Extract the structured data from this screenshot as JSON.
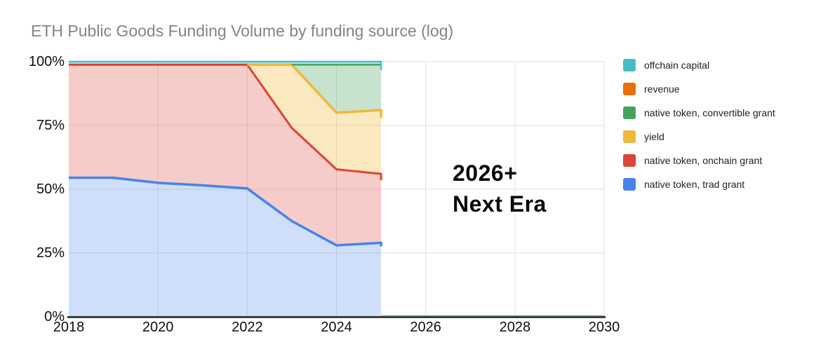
{
  "chart_data": {
    "type": "area",
    "stacking": "percent",
    "title": "ETH Public Goods Funding Volume by funding source (log)",
    "x": [
      2018,
      2019,
      2020,
      2021,
      2022,
      2023,
      2024,
      2025
    ],
    "x_axis": {
      "ticks": [
        2018,
        2020,
        2022,
        2024,
        2026,
        2028,
        2030
      ],
      "range": [
        2018,
        2030
      ]
    },
    "y_axis": {
      "ticks": [
        {
          "label": "0%",
          "pct": 0
        },
        {
          "label": "25%",
          "pct": 25
        },
        {
          "label": "50%",
          "pct": 50
        },
        {
          "label": "75%",
          "pct": 75
        },
        {
          "label": "100%",
          "pct": 100
        }
      ],
      "range_pct": [
        0,
        100
      ]
    },
    "series": [
      {
        "key": "trad",
        "name": "native token, trad grant",
        "color": "#4683EA",
        "fill": "rgba(70,131,234,0.26)",
        "values": [
          54.5,
          54.5,
          52.5,
          51.5,
          50.3,
          37.5,
          28.0,
          29.0
        ]
      },
      {
        "key": "onchain",
        "name": "native token, onchain grant",
        "color": "#DB4437",
        "fill": "rgba(219,68,55,0.27)",
        "values": [
          44.3,
          44.3,
          46.3,
          47.3,
          48.5,
          36.5,
          29.8,
          27.0
        ]
      },
      {
        "key": "yield",
        "name": "yield",
        "color": "#F0B83C",
        "fill": "rgba(240,184,60,0.33)",
        "values": [
          0,
          0,
          0,
          0,
          0,
          24.8,
          22.2,
          25.0
        ]
      },
      {
        "key": "convertible",
        "name": "native token, convertible grant",
        "color": "#46A35E",
        "fill": "rgba(70,163,94,0.30)",
        "values": [
          0,
          0,
          0,
          0,
          0,
          0,
          18.8,
          17.8
        ]
      },
      {
        "key": "revenue",
        "name": "revenue",
        "color": "#E8710A",
        "fill": "rgba(232,113,10,0.30)",
        "values": [
          0,
          0,
          0,
          0,
          0,
          0,
          0,
          0
        ]
      },
      {
        "key": "offchain",
        "name": "offchain capital",
        "color": "#46BDC6",
        "fill": "rgba(70,189,198,0.35)",
        "values": [
          1.2,
          1.2,
          1.2,
          1.2,
          1.2,
          1.2,
          1.2,
          1.2
        ]
      }
    ],
    "legend": {
      "position": "right",
      "order": "reverse-of-stack"
    },
    "annotation": {
      "line1": "2026+",
      "line2": "Next Era"
    },
    "post_2025_line": {
      "from": 2025,
      "to": 2030,
      "pct": 0.4,
      "color": "#46BDC6"
    },
    "colors": {
      "gridline": "#E2E2E2",
      "axis": "#3E3E3E",
      "title": "#848484",
      "background": "#FFFFFF"
    }
  }
}
